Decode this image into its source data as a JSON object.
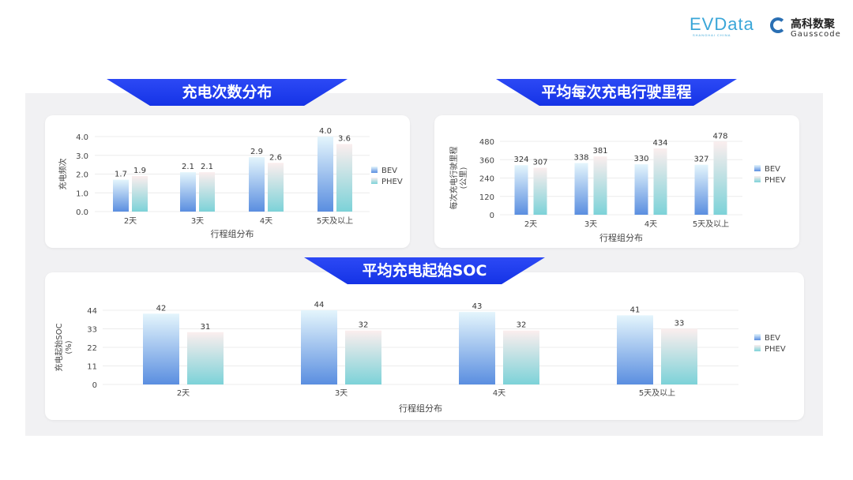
{
  "logos": {
    "evdata": "EVData",
    "evdata_sub": "SHANGHAI CHINA",
    "gauss_cn": "高科数聚",
    "gauss_en": "Gausscode"
  },
  "colors": {
    "banner": "#1f3cf0",
    "bev_top": "#e4f5fc",
    "bev_bottom": "#5a8ee0",
    "phev_top": "#fbeeee",
    "phev_bottom": "#7cd2d8",
    "panel": "#f1f1f3"
  },
  "chart_data": [
    {
      "type": "bar",
      "title": "充电次数分布",
      "xlabel": "行程组分布",
      "ylabel": "充电频次",
      "ylim": [
        0,
        4
      ],
      "yticks": [
        "0.0",
        "1.0",
        "2.0",
        "3.0",
        "4.0"
      ],
      "categories": [
        "2天",
        "3天",
        "4天",
        "5天及以上"
      ],
      "series": [
        {
          "name": "BEV",
          "values": [
            1.7,
            2.1,
            2.9,
            4.0
          ],
          "labels": [
            "1.7",
            "2.1",
            "2.9",
            "4.0"
          ]
        },
        {
          "name": "PHEV",
          "values": [
            1.9,
            2.1,
            2.6,
            3.6
          ],
          "labels": [
            "1.9",
            "2.1",
            "2.6",
            "3.6"
          ]
        }
      ],
      "grid": true,
      "legend": "right"
    },
    {
      "type": "bar",
      "title": "平均每次充电行驶里程",
      "xlabel": "行程组分布",
      "ylabel": "每次充电行驶里程\n(公里)",
      "ylim": [
        0,
        480
      ],
      "yticks": [
        "0",
        "120",
        "240",
        "360",
        "480"
      ],
      "categories": [
        "2天",
        "3天",
        "4天",
        "5天及以上"
      ],
      "series": [
        {
          "name": "BEV",
          "values": [
            324,
            338,
            330,
            327
          ],
          "labels": [
            "324",
            "338",
            "330",
            "327"
          ]
        },
        {
          "name": "PHEV",
          "values": [
            307,
            381,
            434,
            478
          ],
          "labels": [
            "307",
            "381",
            "434",
            "478"
          ]
        }
      ],
      "grid": true,
      "legend": "right"
    },
    {
      "type": "bar",
      "title": "平均充电起始SOC",
      "xlabel": "行程组分布",
      "ylabel": "充电起始SOC\n(%)",
      "ylim": [
        0,
        44
      ],
      "yticks": [
        "0",
        "11",
        "22",
        "33",
        "44"
      ],
      "categories": [
        "2天",
        "3天",
        "4天",
        "5天及以上"
      ],
      "series": [
        {
          "name": "BEV",
          "values": [
            42,
            44,
            43,
            41
          ],
          "labels": [
            "42",
            "44",
            "43",
            "41"
          ]
        },
        {
          "name": "PHEV",
          "values": [
            31,
            32,
            32,
            33
          ],
          "labels": [
            "31",
            "32",
            "32",
            "33"
          ]
        }
      ],
      "grid": true,
      "legend": "right"
    }
  ]
}
